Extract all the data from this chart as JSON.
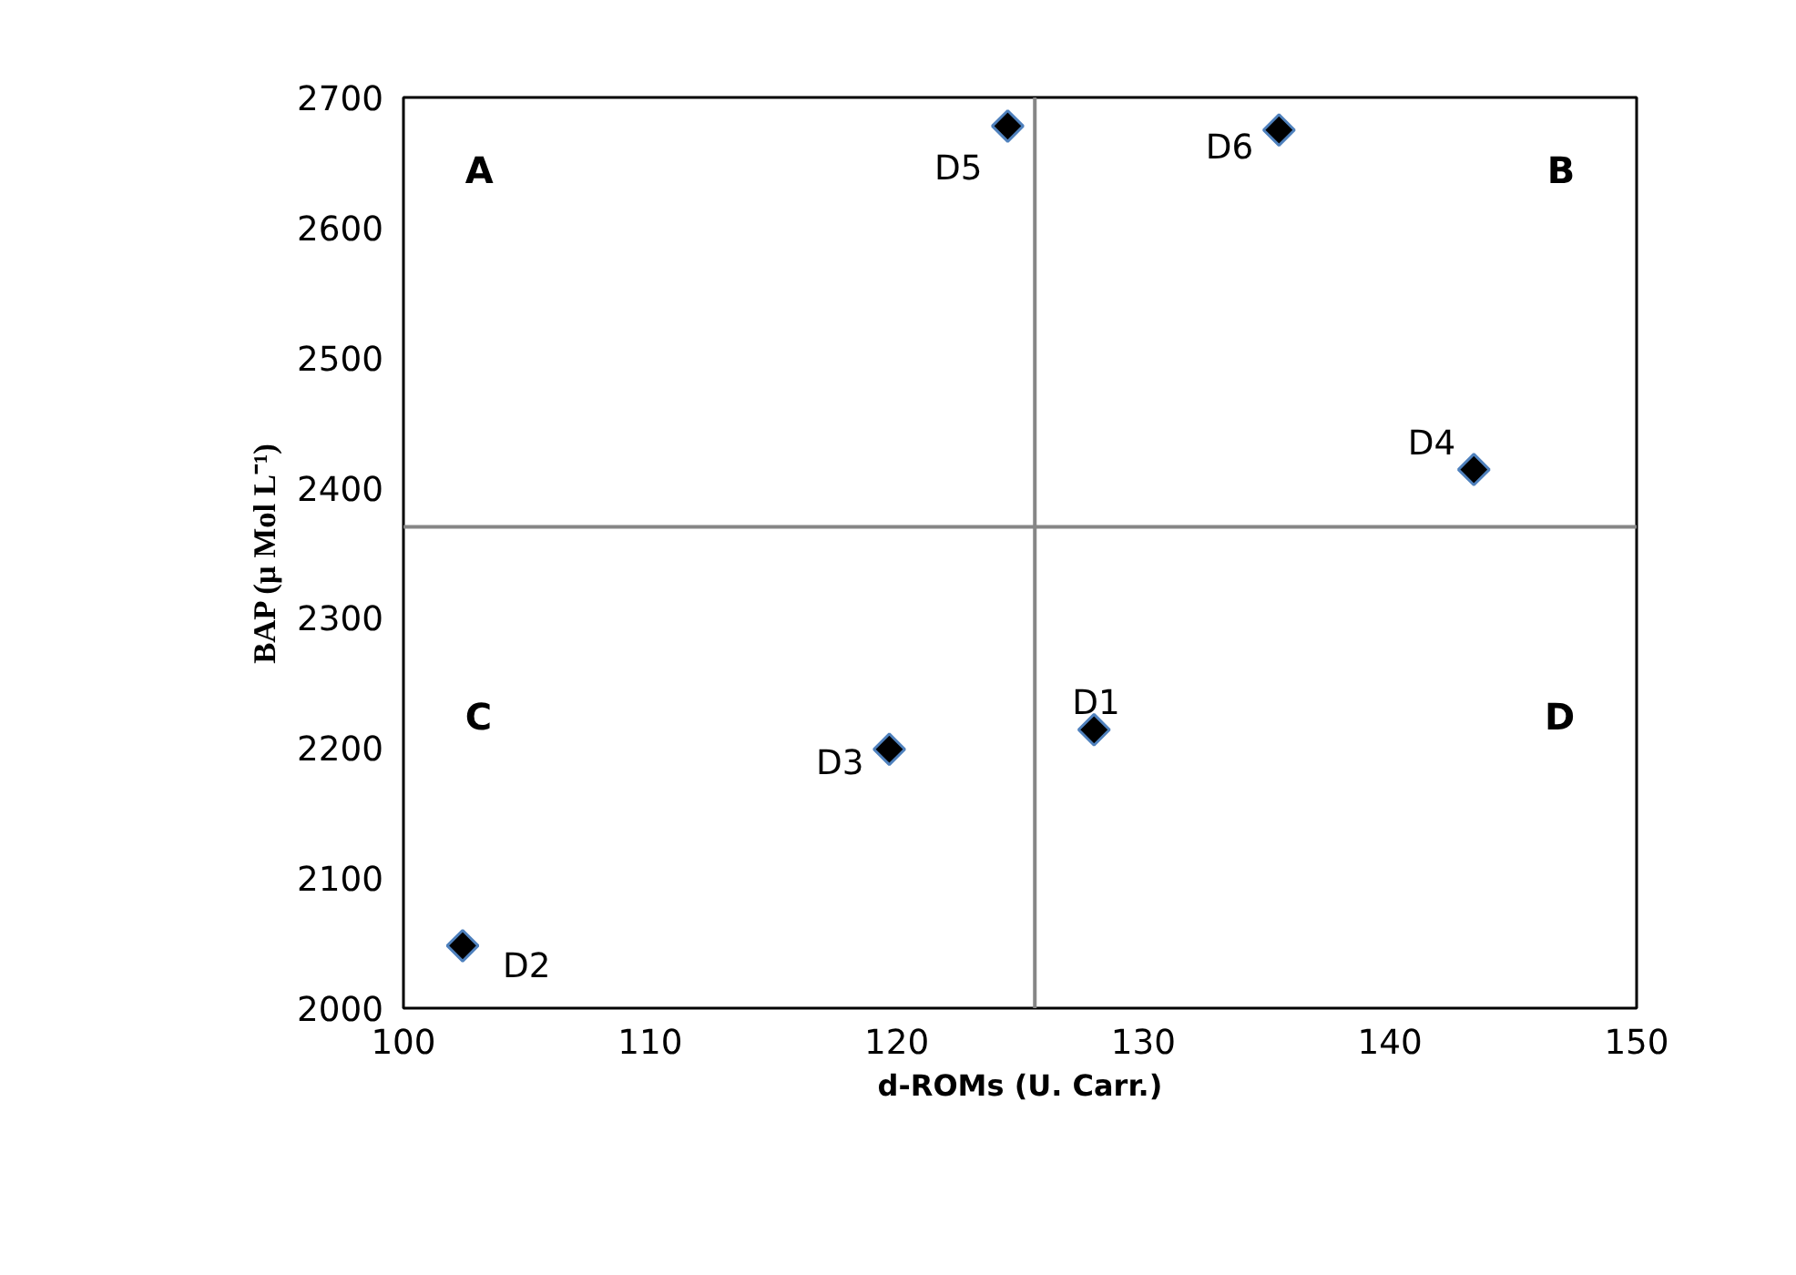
{
  "chart_data": {
    "type": "scatter",
    "xlabel": "d-ROMs (U. Carr.)",
    "ylabel": "BAP (µ Mol L⁻¹)",
    "xlim": [
      100,
      150
    ],
    "xticks": [
      100,
      110,
      120,
      130,
      140,
      150
    ],
    "ylim": [
      2000,
      2700
    ],
    "yticks": [
      2000,
      2100,
      2200,
      2300,
      2400,
      2500,
      2600,
      2700
    ],
    "grid": false,
    "marker": "diamond",
    "series": [
      {
        "name": "D1",
        "color": "#000000",
        "x": [
          128.0
        ],
        "values": [
          2214
        ]
      },
      {
        "name": "D2",
        "color": "#000000",
        "x": [
          102.4
        ],
        "values": [
          2048
        ]
      },
      {
        "name": "D3",
        "color": "#000000",
        "x": [
          119.7
        ],
        "values": [
          2199
        ]
      },
      {
        "name": "D4",
        "color": "#000000",
        "x": [
          143.4
        ],
        "values": [
          2414
        ]
      },
      {
        "name": "D5",
        "color": "#000000",
        "x": [
          124.5
        ],
        "values": [
          2678
        ]
      },
      {
        "name": "D6",
        "color": "#000000",
        "x": [
          135.5
        ],
        "values": [
          2675
        ]
      }
    ],
    "ref_lines": [
      {
        "axis": "x",
        "value": 125.6,
        "color": "#868686"
      },
      {
        "axis": "y",
        "value": 2370,
        "color": "#868686"
      }
    ],
    "annotations": [
      "A",
      "B",
      "C",
      "D"
    ]
  }
}
